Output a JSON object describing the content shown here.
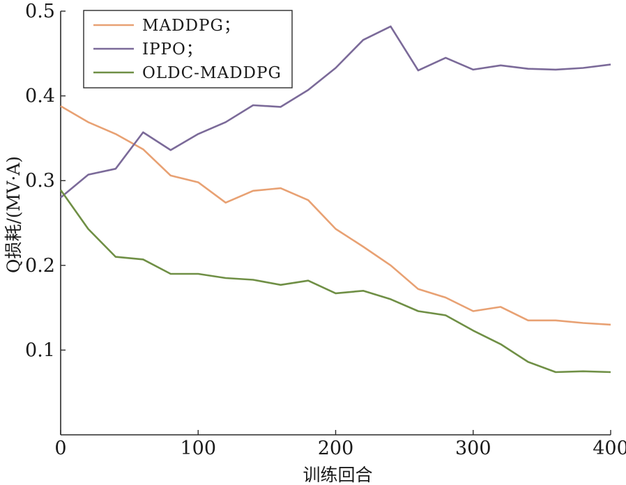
{
  "chart_data": {
    "type": "line",
    "title": "",
    "xlabel": "训练回合",
    "ylabel": "Q损耗/(MV·A)",
    "xlim": [
      0,
      400
    ],
    "ylim": [
      0,
      0.5
    ],
    "x_ticks": [
      0,
      100,
      200,
      300,
      400
    ],
    "y_ticks": [
      0.1,
      0.2,
      0.3,
      0.4,
      0.5
    ],
    "x_tick_labels": [
      "0",
      "100",
      "200",
      "300",
      "400"
    ],
    "y_tick_labels": [
      "0.1",
      "0.2",
      "0.3",
      "0.4",
      "0.5"
    ],
    "grid": false,
    "legend_position": "top-left",
    "x": [
      0,
      20,
      40,
      60,
      80,
      100,
      120,
      140,
      160,
      180,
      200,
      220,
      240,
      260,
      280,
      300,
      320,
      340,
      360,
      380,
      400
    ],
    "series": [
      {
        "name": "MADDPG；",
        "color": "#e8a173",
        "values": [
          0.388,
          0.369,
          0.355,
          0.337,
          0.306,
          0.298,
          0.274,
          0.288,
          0.291,
          0.277,
          0.243,
          0.222,
          0.2,
          0.172,
          0.162,
          0.146,
          0.151,
          0.135,
          0.135,
          0.132,
          0.13
        ]
      },
      {
        "name": "IPPO；",
        "color": "#7b6a99",
        "values": [
          0.28,
          0.307,
          0.314,
          0.357,
          0.336,
          0.355,
          0.369,
          0.389,
          0.387,
          0.407,
          0.433,
          0.466,
          0.482,
          0.43,
          0.445,
          0.431,
          0.436,
          0.432,
          0.431,
          0.433,
          0.437
        ]
      },
      {
        "name": "OLDC-MADDPG",
        "color": "#6f8f45",
        "values": [
          0.289,
          0.243,
          0.21,
          0.207,
          0.19,
          0.19,
          0.185,
          0.183,
          0.177,
          0.182,
          0.167,
          0.17,
          0.16,
          0.146,
          0.141,
          0.123,
          0.107,
          0.086,
          0.074,
          0.075,
          0.074
        ]
      }
    ]
  }
}
